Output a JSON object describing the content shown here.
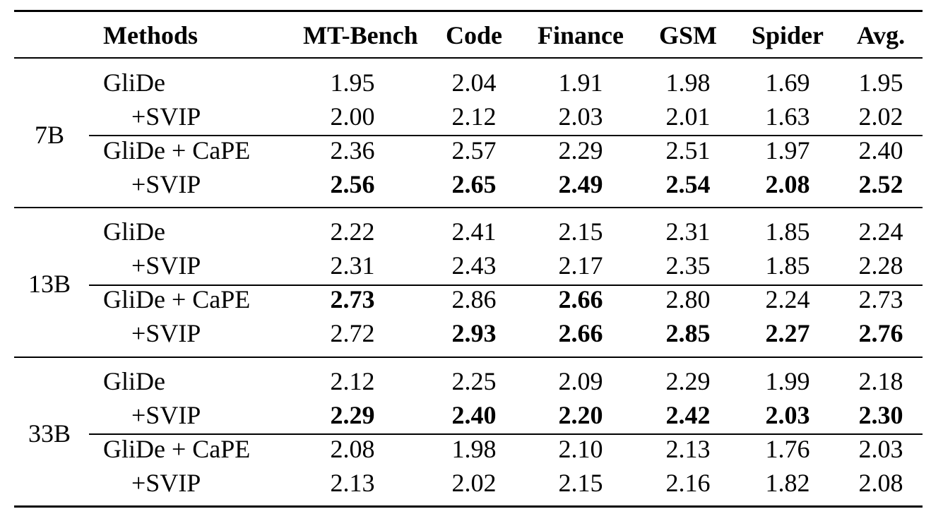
{
  "chart_data": {
    "type": "table",
    "columns": [
      "Methods",
      "MT-Bench",
      "Code",
      "Finance",
      "GSM",
      "Spider",
      "Avg."
    ],
    "groups": [
      {
        "size": "7B",
        "rows": [
          {
            "method": "GliDe",
            "values": [
              "1.95",
              "2.04",
              "1.91",
              "1.98",
              "1.69",
              "1.95"
            ],
            "bold": [
              false,
              false,
              false,
              false,
              false,
              false
            ]
          },
          {
            "method": "+SVIP",
            "values": [
              "2.00",
              "2.12",
              "2.03",
              "2.01",
              "1.63",
              "2.02"
            ],
            "bold": [
              false,
              false,
              false,
              false,
              false,
              false
            ]
          },
          {
            "method": "GliDe + CaPE",
            "values": [
              "2.36",
              "2.57",
              "2.29",
              "2.51",
              "1.97",
              "2.40"
            ],
            "bold": [
              false,
              false,
              false,
              false,
              false,
              false
            ]
          },
          {
            "method": "+SVIP",
            "values": [
              "2.56",
              "2.65",
              "2.49",
              "2.54",
              "2.08",
              "2.52"
            ],
            "bold": [
              true,
              true,
              true,
              true,
              true,
              true
            ]
          }
        ]
      },
      {
        "size": "13B",
        "rows": [
          {
            "method": "GliDe",
            "values": [
              "2.22",
              "2.41",
              "2.15",
              "2.31",
              "1.85",
              "2.24"
            ],
            "bold": [
              false,
              false,
              false,
              false,
              false,
              false
            ]
          },
          {
            "method": "+SVIP",
            "values": [
              "2.31",
              "2.43",
              "2.17",
              "2.35",
              "1.85",
              "2.28"
            ],
            "bold": [
              false,
              false,
              false,
              false,
              false,
              false
            ]
          },
          {
            "method": "GliDe + CaPE",
            "values": [
              "2.73",
              "2.86",
              "2.66",
              "2.80",
              "2.24",
              "2.73"
            ],
            "bold": [
              true,
              false,
              true,
              false,
              false,
              false
            ]
          },
          {
            "method": "+SVIP",
            "values": [
              "2.72",
              "2.93",
              "2.66",
              "2.85",
              "2.27",
              "2.76"
            ],
            "bold": [
              false,
              true,
              true,
              true,
              true,
              true
            ]
          }
        ]
      },
      {
        "size": "33B",
        "rows": [
          {
            "method": "GliDe",
            "values": [
              "2.12",
              "2.25",
              "2.09",
              "2.29",
              "1.99",
              "2.18"
            ],
            "bold": [
              false,
              false,
              false,
              false,
              false,
              false
            ]
          },
          {
            "method": "+SVIP",
            "values": [
              "2.29",
              "2.40",
              "2.20",
              "2.42",
              "2.03",
              "2.30"
            ],
            "bold": [
              true,
              true,
              true,
              true,
              true,
              true
            ]
          },
          {
            "method": "GliDe + CaPE",
            "values": [
              "2.08",
              "1.98",
              "2.10",
              "2.13",
              "1.76",
              "2.03"
            ],
            "bold": [
              false,
              false,
              false,
              false,
              false,
              false
            ]
          },
          {
            "method": "+SVIP",
            "values": [
              "2.13",
              "2.02",
              "2.15",
              "2.16",
              "1.82",
              "2.08"
            ],
            "bold": [
              false,
              false,
              false,
              false,
              false,
              false
            ]
          }
        ]
      }
    ]
  }
}
